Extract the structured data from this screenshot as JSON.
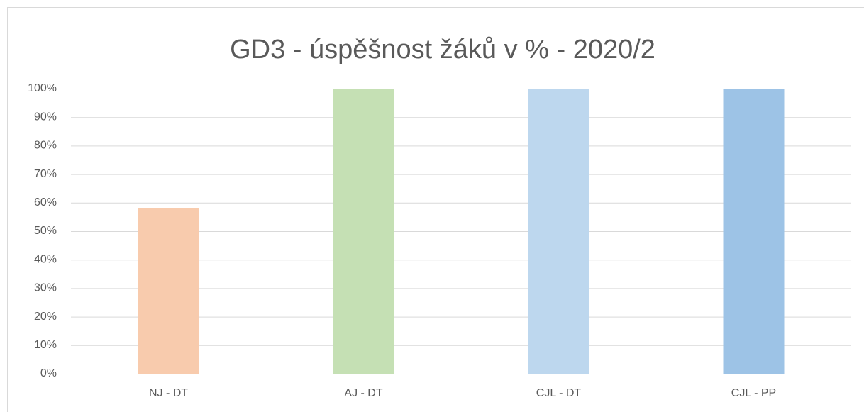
{
  "chart_data": {
    "type": "bar",
    "title": "GD3 - úspěšnost žáků v % - 2020/2",
    "categories": [
      "NJ - DT",
      "AJ - DT",
      "CJL - DT",
      "CJL - PP"
    ],
    "values": [
      58,
      100,
      100,
      100
    ],
    "colors": [
      "#f8cbad",
      "#c5e0b4",
      "#bdd7ee",
      "#9dc3e6"
    ],
    "ylim": [
      0,
      100
    ],
    "yticks": [
      {
        "value": 0,
        "label": "0%"
      },
      {
        "value": 10,
        "label": "10%"
      },
      {
        "value": 20,
        "label": "20%"
      },
      {
        "value": 30,
        "label": "30%"
      },
      {
        "value": 40,
        "label": "40%"
      },
      {
        "value": 50,
        "label": "50%"
      },
      {
        "value": 60,
        "label": "60%"
      },
      {
        "value": 70,
        "label": "70%"
      },
      {
        "value": 80,
        "label": "80%"
      },
      {
        "value": 90,
        "label": "90%"
      },
      {
        "value": 100,
        "label": "100%"
      }
    ],
    "grid": true
  }
}
